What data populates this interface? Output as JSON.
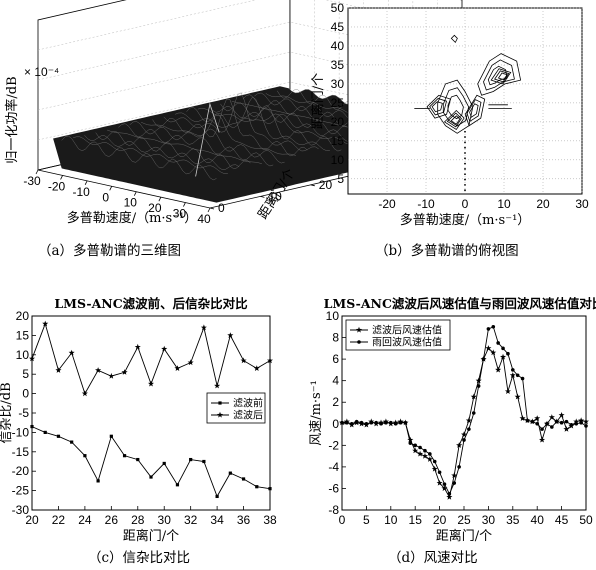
{
  "figure": {
    "captions": [
      "（a）多普勒谱的三维图",
      "（b）多普勒谱的俯视图",
      "（c）信杂比对比",
      "（d）风速对比"
    ]
  },
  "chart_data": [
    {
      "id": "a",
      "type": "surface3d",
      "xlabel": "多普勒速度/（m·s⁻¹）",
      "ylabel": "距离门/个",
      "zlabel": "归一化功率/dB",
      "zscale_label": "× 10⁻⁴",
      "x_ticks": [
        "-30",
        "-20",
        "-10",
        "0",
        "10",
        "20",
        "30",
        "40"
      ],
      "y_ticks": [
        "0",
        "10",
        "20",
        "30",
        "40",
        "50"
      ],
      "xlim": [
        -30,
        40
      ],
      "ylim": [
        0,
        50
      ]
    },
    {
      "id": "b",
      "type": "contour",
      "xlabel": "多普勒速度/（m·s⁻¹）",
      "ylabel": "距离门/个",
      "x_ticks": [
        "-20",
        "-10",
        "0",
        "10",
        "20",
        "30"
      ],
      "y_ticks": [
        "5",
        "10",
        "15",
        "20",
        "25",
        "30",
        "35",
        "40",
        "45",
        "50"
      ],
      "xlim": [
        -30,
        30
      ],
      "ylim": [
        1,
        50
      ]
    },
    {
      "id": "c",
      "type": "line",
      "title": "LMS-ANC滤波前、后信杂比对比",
      "xlabel": "距离门/个",
      "ylabel": "信杂比/dB",
      "xlim": [
        20,
        38
      ],
      "ylim": [
        -30,
        20
      ],
      "x_ticks": [
        "20",
        "22",
        "24",
        "26",
        "28",
        "30",
        "32",
        "34",
        "36",
        "38"
      ],
      "y_ticks": [
        "20",
        "15",
        "10",
        "5",
        "0",
        "-5",
        "-10",
        "-15",
        "-20",
        "-25",
        "-30"
      ],
      "legend_position": "right",
      "x": [
        20,
        21,
        22,
        23,
        24,
        25,
        26,
        27,
        28,
        29,
        30,
        31,
        32,
        33,
        34,
        35,
        36,
        37,
        38
      ],
      "series": [
        {
          "name": "滤波前",
          "marker": "square",
          "values": [
            -8.5,
            -10,
            -11,
            -12.5,
            -16,
            -22.5,
            -11,
            -16,
            -17,
            -21.5,
            -18,
            -23.5,
            -17,
            -17.5,
            -26.5,
            -20.5,
            -22,
            -24,
            -24.5
          ]
        },
        {
          "name": "滤波后",
          "marker": "star",
          "values": [
            9,
            18,
            6,
            10.5,
            0,
            6,
            4.5,
            5.5,
            12,
            2.5,
            11.5,
            6.5,
            8,
            17,
            2,
            15,
            8.5,
            6.5,
            8.5
          ]
        }
      ]
    },
    {
      "id": "d",
      "type": "line",
      "title": "LMS-ANC滤波后风速估值与雨回波风速估值对比",
      "xlabel": "距离门/个",
      "ylabel": "风速/m·s⁻¹",
      "xlim": [
        0,
        50
      ],
      "ylim": [
        -8,
        10
      ],
      "x_ticks": [
        "0",
        "5",
        "10",
        "15",
        "20",
        "25",
        "30",
        "35",
        "40",
        "45",
        "50"
      ],
      "y_ticks": [
        "10",
        "8",
        "6",
        "4",
        "2",
        "0",
        "-2",
        "-4",
        "-6",
        "-8"
      ],
      "legend_position": "top-left",
      "x": [
        0,
        1,
        2,
        3,
        4,
        5,
        6,
        7,
        8,
        9,
        10,
        11,
        12,
        13,
        14,
        15,
        16,
        17,
        18,
        19,
        20,
        21,
        22,
        23,
        24,
        25,
        26,
        27,
        28,
        29,
        30,
        31,
        32,
        33,
        34,
        35,
        36,
        37,
        38,
        39,
        40,
        41,
        42,
        43,
        44,
        45,
        46,
        47,
        48,
        49,
        50
      ],
      "series": [
        {
          "name": "滤波后风速估值",
          "marker": "star",
          "values": [
            0.1,
            0.2,
            -0.1,
            0.1,
            0.0,
            -0.1,
            0.2,
            0.0,
            0.1,
            0.2,
            0.0,
            0.1,
            0.2,
            0.1,
            -1.5,
            -2.5,
            -2.8,
            -3.0,
            -3.3,
            -4.2,
            -5.5,
            -6.0,
            -6.8,
            -4.8,
            -2.0,
            -1.0,
            0.3,
            2.5,
            4.0,
            6.0,
            7.0,
            6.6,
            5.0,
            6.2,
            3.0,
            4.5,
            2.5,
            0.5,
            0.3,
            0.2,
            0.5,
            -1.5,
            0.0,
            0.6,
            0.2,
            0.8,
            -0.5,
            -0.2,
            0.2,
            0.3,
            0.2
          ]
        },
        {
          "name": "雨回波风速估值",
          "marker": "dot",
          "values": [
            0.1,
            0.1,
            0.0,
            0.2,
            0.1,
            0.0,
            0.1,
            0.1,
            0.0,
            0.1,
            0.1,
            0.0,
            0.1,
            0.1,
            -1.8,
            -2.0,
            -2.2,
            -2.5,
            -2.8,
            -3.5,
            -4.5,
            -5.6,
            -6.5,
            -5.5,
            -4.0,
            -1.5,
            -0.5,
            1.0,
            3.5,
            6.0,
            8.8,
            9.0,
            7.5,
            7.0,
            6.5,
            5.0,
            4.5,
            4.2,
            0.3,
            0.2,
            0.0,
            -0.5,
            0.0,
            -0.3,
            0.2,
            0.1,
            0.2,
            -0.1,
            0.0,
            0.1,
            -0.2
          ]
        }
      ]
    }
  ]
}
